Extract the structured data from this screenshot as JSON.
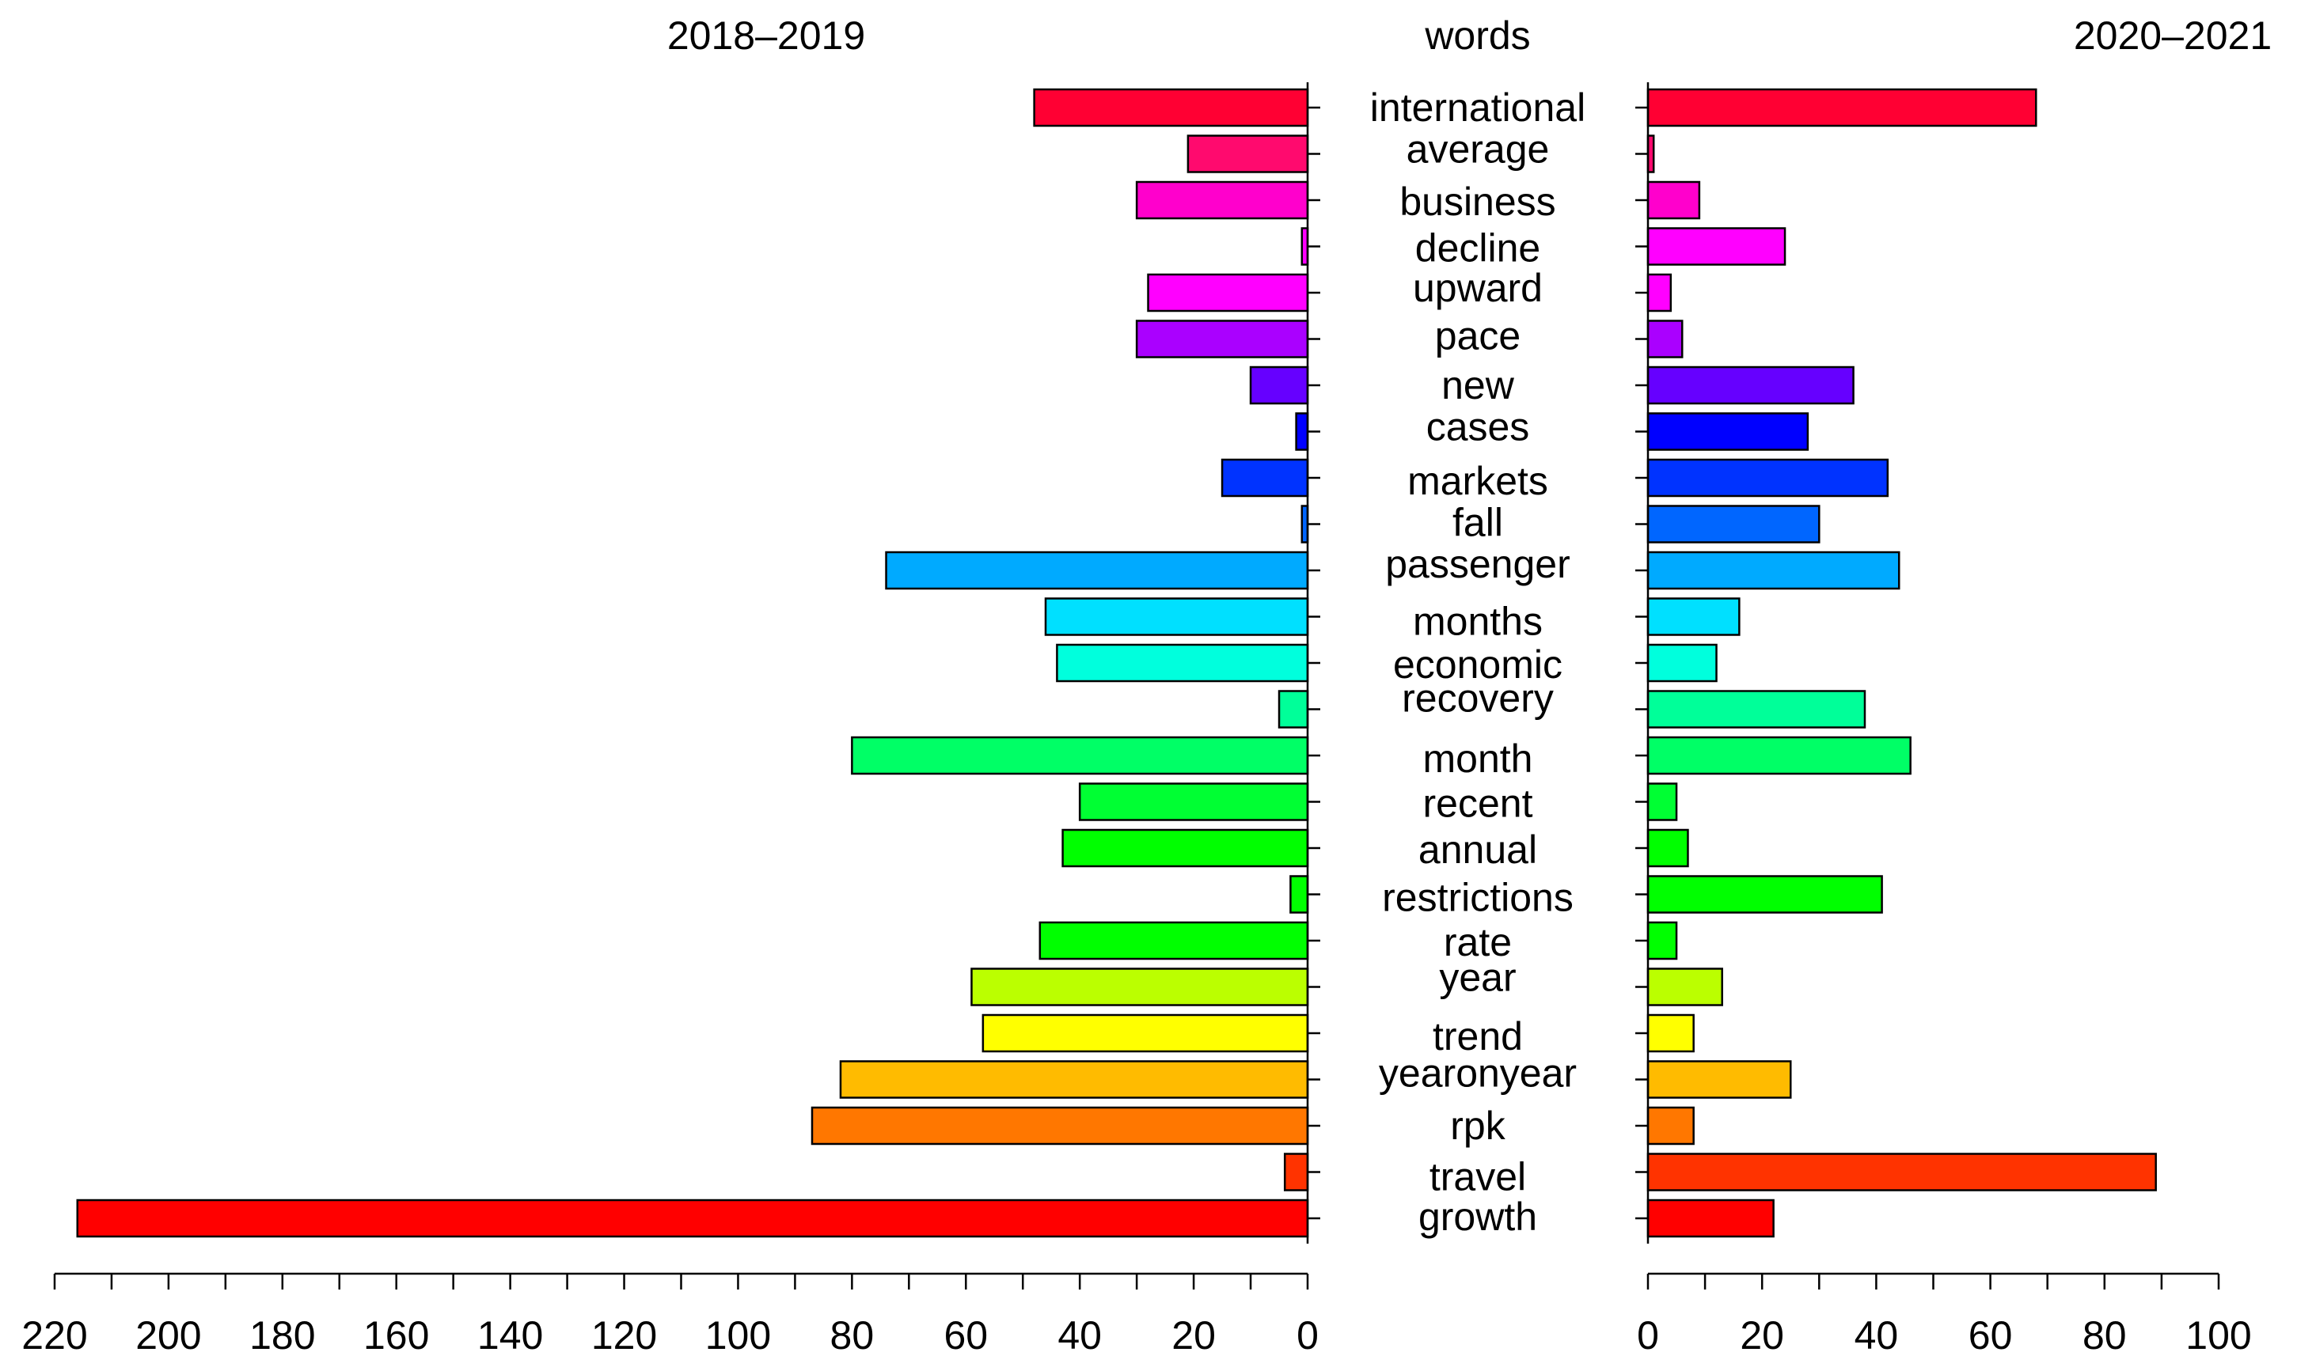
{
  "chart_data": {
    "type": "bar",
    "orientation": "horizontal",
    "layout": "back-to-back",
    "center_title": "words",
    "categories": [
      "international",
      "average",
      "business",
      "decline",
      "upward",
      "pace",
      "new",
      "cases",
      "markets",
      "fall",
      "passenger",
      "months",
      "economic",
      "recovery",
      "month",
      "recent",
      "annual",
      "restrictions",
      "rate",
      "year",
      "trend",
      "yearonyear",
      "rpk",
      "travel",
      "growth"
    ],
    "colors": [
      "#FF0033",
      "#FF0A6E",
      "#FF00CC",
      "#FF00FF",
      "#FF00FF",
      "#AA00FF",
      "#6600FF",
      "#0000FF",
      "#0033FF",
      "#0066FF",
      "#00AAFF",
      "#00E0FF",
      "#00FFDD",
      "#00FF99",
      "#00FF66",
      "#00FF33",
      "#00FF00",
      "#00FF00",
      "#00FF00",
      "#BBFF00",
      "#FFFF00",
      "#FFBB00",
      "#FF7700",
      "#FF3300",
      "#FF0000"
    ],
    "series": [
      {
        "name": "2018–2019",
        "title": "2018–2019",
        "side": "left",
        "xlim": [
          0,
          220
        ],
        "ticks": [
          0,
          20,
          40,
          60,
          80,
          100,
          120,
          140,
          160,
          180,
          200,
          220
        ],
        "values": [
          48,
          21,
          30,
          1,
          28,
          30,
          10,
          2,
          15,
          1,
          74,
          46,
          44,
          5,
          80,
          40,
          43,
          3,
          47,
          59,
          57,
          82,
          87,
          4,
          216
        ]
      },
      {
        "name": "2020–2021",
        "title": "2020–2021",
        "side": "right",
        "xlim": [
          0,
          100
        ],
        "ticks": [
          0,
          20,
          40,
          60,
          80,
          100
        ],
        "values": [
          68,
          1,
          9,
          24,
          4,
          6,
          36,
          28,
          42,
          30,
          44,
          16,
          12,
          38,
          46,
          5,
          7,
          41,
          5,
          13,
          8,
          25,
          8,
          89,
          22
        ]
      }
    ]
  }
}
